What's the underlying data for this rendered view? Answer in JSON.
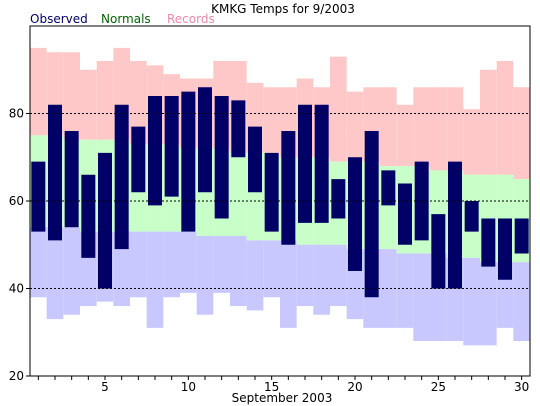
{
  "chart_data": {
    "type": "bar",
    "title": "KMKG Temps for 9/2003",
    "xlabel": "September 2003",
    "ylabel": "",
    "legend": [
      {
        "label": "Observed",
        "color": "#000066"
      },
      {
        "label": "Normals",
        "color": "#006600"
      },
      {
        "label": "Records",
        "color": "#ee88aa"
      }
    ],
    "legend_placement": "top-left",
    "colors": {
      "observed": "#000066",
      "normal_band": "#c8ffc8",
      "record_high_band": "#ffc8c8",
      "record_low_band": "#c8c8ff"
    },
    "xlim": [
      1,
      30
    ],
    "ylim": [
      20,
      100
    ],
    "x_ticks": [
      5,
      10,
      15,
      20,
      25,
      30
    ],
    "y_ticks": [
      20,
      40,
      60,
      80
    ],
    "dashed_gridlines": [
      40,
      60,
      80
    ],
    "days": [
      1,
      2,
      3,
      4,
      5,
      6,
      7,
      8,
      9,
      10,
      11,
      12,
      13,
      14,
      15,
      16,
      17,
      18,
      19,
      20,
      21,
      22,
      23,
      24,
      25,
      26,
      27,
      28,
      29,
      30
    ],
    "observed_high": [
      69,
      82,
      76,
      66,
      71,
      82,
      77,
      84,
      84,
      85,
      86,
      84,
      83,
      77,
      71,
      76,
      82,
      82,
      65,
      70,
      76,
      67,
      64,
      69,
      57,
      69,
      60,
      56,
      56,
      56
    ],
    "observed_low": [
      53,
      51,
      54,
      47,
      40,
      49,
      62,
      59,
      61,
      53,
      62,
      56,
      70,
      62,
      53,
      50,
      55,
      55,
      56,
      44,
      38,
      59,
      50,
      51,
      40,
      40,
      53,
      45,
      42,
      48
    ],
    "normal_high": [
      75,
      75,
      74,
      74,
      74,
      74,
      73,
      73,
      73,
      72,
      72,
      72,
      71,
      71,
      71,
      70,
      70,
      70,
      69,
      69,
      69,
      68,
      68,
      68,
      67,
      67,
      66,
      66,
      66,
      65
    ],
    "normal_low": [
      54,
      54,
      54,
      53,
      53,
      53,
      53,
      53,
      53,
      53,
      52,
      52,
      52,
      51,
      51,
      51,
      50,
      50,
      50,
      49,
      49,
      49,
      48,
      48,
      48,
      47,
      47,
      46,
      46,
      46
    ],
    "record_high": [
      95,
      94,
      94,
      90,
      92,
      95,
      92,
      91,
      89,
      88,
      88,
      92,
      92,
      87,
      86,
      86,
      88,
      86,
      93,
      85,
      86,
      86,
      82,
      86,
      86,
      86,
      81,
      90,
      92,
      86
    ],
    "record_low": [
      38,
      33,
      34,
      36,
      37,
      36,
      38,
      31,
      38,
      39,
      34,
      39,
      36,
      35,
      38,
      31,
      36,
      34,
      36,
      33,
      31,
      31,
      31,
      28,
      28,
      28,
      27,
      27,
      31,
      28
    ]
  }
}
